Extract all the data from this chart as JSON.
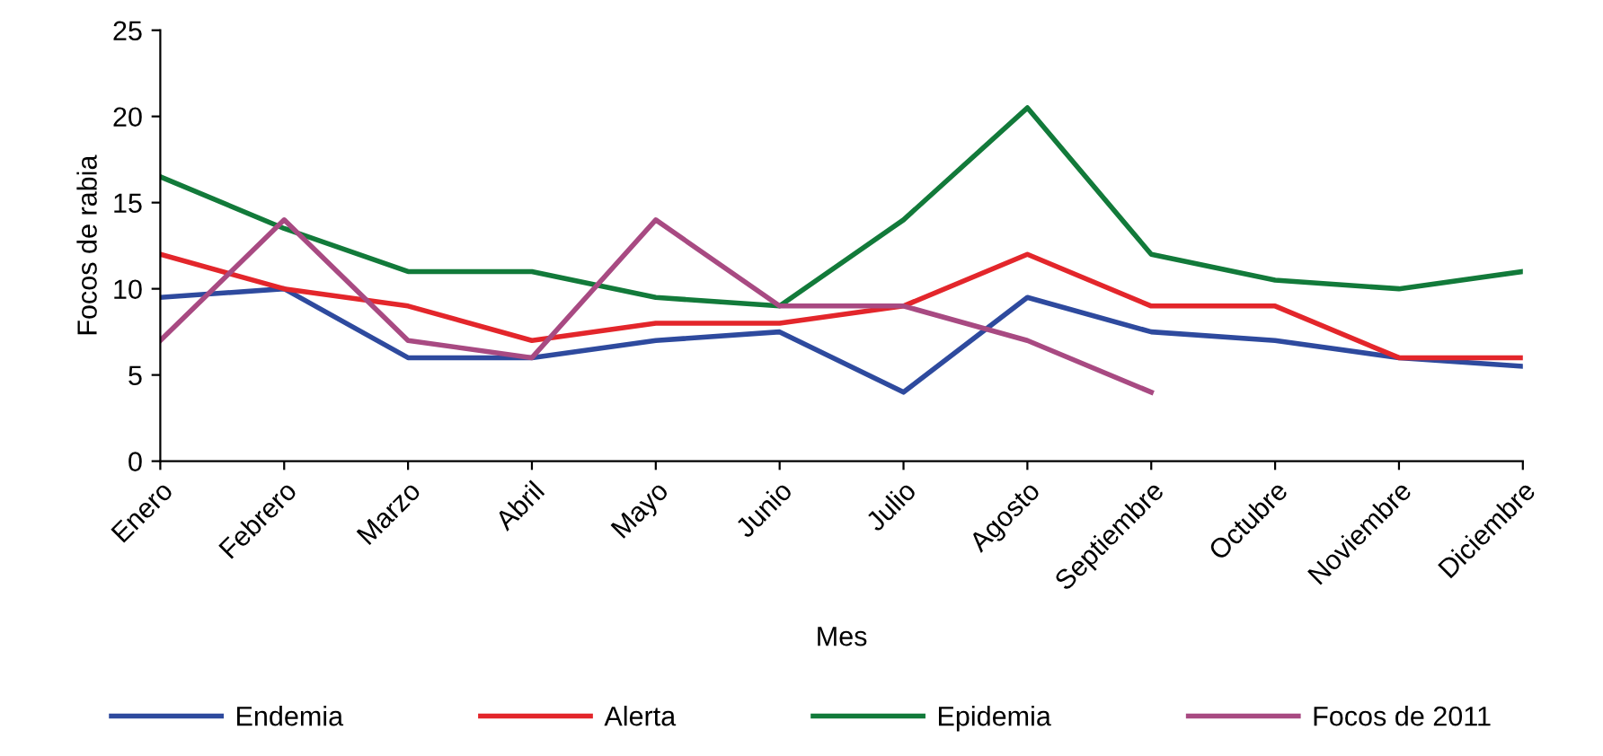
{
  "chart_data": {
    "type": "line",
    "xlabel": "Mes",
    "ylabel": "Focos de rabia",
    "categories": [
      "Enero",
      "Febrero",
      "Marzo",
      "Abril",
      "Mayo",
      "Junio",
      "Julio",
      "Agosto",
      "Septiembre",
      "Octubre",
      "Noviembre",
      "Diciembre"
    ],
    "series": [
      {
        "name": "Endemia",
        "color": "#2e4a9e",
        "values": [
          9.5,
          10,
          6,
          6,
          7,
          7.5,
          4,
          9.5,
          7.5,
          7,
          6,
          5.5
        ]
      },
      {
        "name": "Alerta",
        "color": "#e3262b",
        "values": [
          12,
          10,
          9,
          7,
          8,
          8,
          9,
          12,
          9,
          9,
          6,
          6
        ]
      },
      {
        "name": "Epidemia",
        "color": "#127a3a",
        "values": [
          16.5,
          13.5,
          11,
          11,
          9.5,
          9,
          14,
          20.5,
          12,
          10.5,
          10,
          11
        ]
      },
      {
        "name": "Focos de 2011",
        "color": "#a84a82",
        "values": [
          7,
          14,
          7,
          6,
          14,
          9,
          9,
          7,
          4,
          null,
          null,
          null
        ]
      }
    ],
    "ylim": [
      0,
      25
    ],
    "yticks": [
      0,
      5,
      10,
      15,
      20,
      25
    ],
    "grid": false,
    "legend": "bottom",
    "marker": "none",
    "line_style": "solid"
  }
}
